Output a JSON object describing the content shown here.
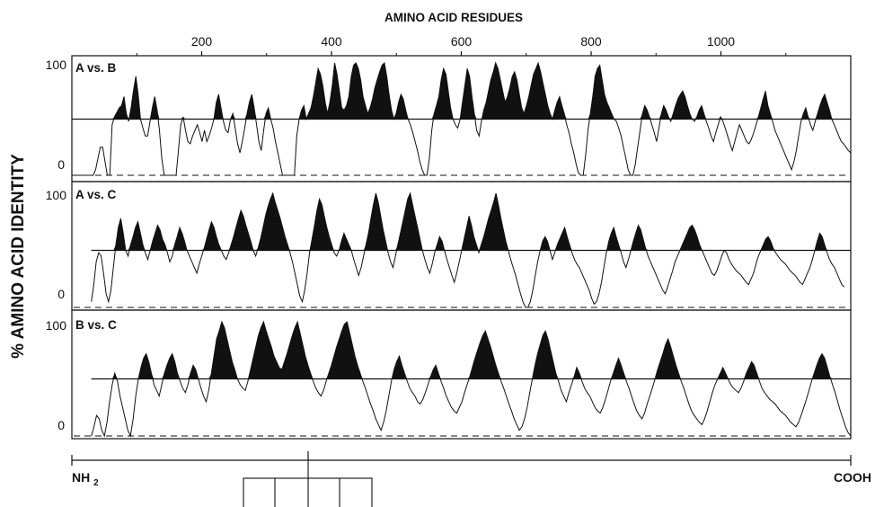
{
  "chart_data": {
    "type": "line",
    "top_axis_title": "AMINO ACID RESIDUES",
    "ylabel": "% AMINO ACID IDENTITY",
    "top_ticks": [
      "200",
      "400",
      "600",
      "800",
      "1000"
    ],
    "top_tick_values": [
      200,
      400,
      600,
      800,
      1000
    ],
    "minor_tick_values": [
      100,
      300,
      500,
      700,
      900,
      1100
    ],
    "xlim": [
      0,
      1200
    ],
    "ylim": [
      0,
      100
    ],
    "threshold": 50,
    "end_labels": {
      "left": "NH2",
      "right": "COOH"
    },
    "panels": [
      {
        "label": "A vs. B",
        "y_ticks": [
          "100",
          "0"
        ],
        "x_start": 0,
        "x_end": 1200,
        "values": [
          0,
          0,
          0,
          0,
          0,
          0,
          0,
          0,
          0,
          0,
          5,
          15,
          25,
          25,
          12,
          0,
          0,
          45,
          52,
          56,
          60,
          62,
          70,
          55,
          48,
          60,
          75,
          88,
          72,
          50,
          42,
          35,
          35,
          48,
          60,
          70,
          58,
          40,
          15,
          0,
          0,
          0,
          0,
          0,
          0,
          22,
          45,
          52,
          40,
          30,
          28,
          35,
          40,
          45,
          38,
          30,
          40,
          30,
          35,
          42,
          50,
          65,
          72,
          60,
          48,
          40,
          38,
          50,
          55,
          42,
          28,
          20,
          30,
          42,
          55,
          65,
          72,
          60,
          45,
          30,
          22,
          40,
          55,
          60,
          50,
          42,
          30,
          20,
          10,
          0,
          0,
          0,
          0,
          0,
          0,
          35,
          50,
          58,
          62,
          50,
          55,
          60,
          70,
          82,
          95,
          90,
          80,
          65,
          55,
          65,
          80,
          100,
          90,
          75,
          60,
          58,
          62,
          70,
          88,
          98,
          100,
          95,
          85,
          70,
          62,
          55,
          60,
          68,
          78,
          85,
          92,
          98,
          100,
          88,
          72,
          58,
          50,
          55,
          65,
          72,
          68,
          58,
          50,
          45,
          38,
          30,
          22,
          12,
          5,
          0,
          0,
          15,
          40,
          55,
          62,
          70,
          85,
          95,
          90,
          75,
          60,
          50,
          45,
          42,
          50,
          65,
          80,
          95,
          88,
          70,
          55,
          40,
          35,
          48,
          58,
          65,
          75,
          85,
          92,
          100,
          95,
          85,
          75,
          65,
          70,
          78,
          88,
          92,
          85,
          72,
          60,
          55,
          62,
          70,
          80,
          90,
          95,
          100,
          92,
          82,
          72,
          62,
          55,
          50,
          58,
          65,
          70,
          62,
          55,
          45,
          38,
          28,
          20,
          10,
          2,
          0,
          0,
          18,
          40,
          55,
          70,
          88,
          95,
          98,
          85,
          72,
          65,
          60,
          55,
          50,
          48,
          42,
          35,
          25,
          15,
          5,
          0,
          0,
          10,
          25,
          40,
          55,
          62,
          58,
          52,
          45,
          38,
          30,
          42,
          55,
          62,
          58,
          52,
          48,
          55,
          62,
          68,
          72,
          75,
          70,
          62,
          55,
          50,
          48,
          52,
          58,
          62,
          55,
          48,
          42,
          35,
          30,
          38,
          45,
          52,
          48,
          42,
          35,
          28,
          22,
          30,
          38,
          45,
          40,
          35,
          30,
          28,
          32,
          38,
          45,
          52,
          60,
          68,
          75,
          62,
          55,
          48,
          40,
          35,
          30,
          25,
          20,
          15,
          10,
          5,
          12,
          22,
          35,
          48,
          55,
          60,
          52,
          45,
          40,
          48,
          55,
          62,
          68,
          72,
          65,
          58,
          50,
          45,
          40,
          35,
          30,
          28,
          25,
          22,
          20
        ]
      },
      {
        "label": "A vs. C",
        "y_ticks": [
          "100",
          "0"
        ],
        "x_start": 30,
        "x_end": 1190,
        "values": [
          5,
          20,
          40,
          48,
          45,
          30,
          12,
          5,
          15,
          35,
          55,
          70,
          78,
          65,
          50,
          45,
          55,
          62,
          70,
          75,
          65,
          55,
          48,
          42,
          50,
          58,
          65,
          72,
          68,
          60,
          55,
          48,
          40,
          45,
          55,
          62,
          70,
          65,
          58,
          50,
          45,
          40,
          35,
          30,
          38,
          45,
          52,
          60,
          68,
          75,
          70,
          62,
          55,
          50,
          45,
          42,
          48,
          55,
          62,
          70,
          78,
          85,
          80,
          72,
          65,
          58,
          50,
          45,
          52,
          60,
          70,
          80,
          88,
          95,
          100,
          92,
          85,
          78,
          70,
          62,
          55,
          48,
          40,
          30,
          20,
          10,
          5,
          15,
          30,
          48,
          60,
          72,
          85,
          95,
          90,
          80,
          70,
          62,
          55,
          48,
          45,
          50,
          58,
          65,
          60,
          55,
          50,
          42,
          35,
          28,
          35,
          45,
          55,
          65,
          78,
          90,
          100,
          92,
          80,
          68,
          58,
          48,
          40,
          35,
          45,
          55,
          65,
          75,
          85,
          95,
          100,
          90,
          80,
          70,
          60,
          50,
          42,
          35,
          30,
          38,
          48,
          55,
          62,
          58,
          50,
          42,
          35,
          28,
          22,
          30,
          40,
          50,
          60,
          70,
          80,
          72,
          62,
          55,
          48,
          55,
          62,
          70,
          78,
          85,
          92,
          100,
          90,
          78,
          68,
          58,
          50,
          42,
          35,
          28,
          20,
          12,
          5,
          0,
          0,
          5,
          15,
          28,
          40,
          50,
          58,
          62,
          58,
          50,
          42,
          48,
          55,
          60,
          65,
          70,
          62,
          55,
          48,
          42,
          38,
          35,
          30,
          25,
          20,
          15,
          8,
          3,
          5,
          12,
          22,
          35,
          48,
          58,
          65,
          70,
          62,
          55,
          48,
          40,
          35,
          42,
          50,
          58,
          65,
          72,
          68,
          60,
          52,
          45,
          40,
          35,
          30,
          25,
          20,
          15,
          12,
          18,
          25,
          32,
          40,
          45,
          50,
          55,
          60,
          65,
          70,
          72,
          68,
          62,
          55,
          50,
          45,
          40,
          35,
          30,
          28,
          32,
          38,
          45,
          50,
          48,
          42,
          38,
          35,
          32,
          30,
          28,
          25,
          22,
          20,
          25,
          30,
          38,
          45,
          50,
          55,
          60,
          62,
          58,
          52,
          48,
          45,
          42,
          40,
          38,
          35,
          32,
          30,
          28,
          25,
          22,
          20,
          25,
          30,
          35,
          42,
          50,
          58,
          65,
          62,
          55,
          48,
          42,
          38,
          35,
          30,
          25,
          20,
          18
        ]
      },
      {
        "label": "B vs. C",
        "y_ticks": [
          "100",
          "0"
        ],
        "x_start": 30,
        "x_end": 1200,
        "values": [
          0,
          8,
          18,
          15,
          5,
          0,
          12,
          30,
          45,
          55,
          48,
          35,
          25,
          15,
          5,
          0,
          15,
          35,
          50,
          60,
          68,
          72,
          65,
          55,
          45,
          40,
          35,
          45,
          55,
          62,
          68,
          72,
          65,
          55,
          48,
          42,
          38,
          45,
          55,
          62,
          58,
          50,
          42,
          35,
          30,
          40,
          55,
          70,
          85,
          92,
          100,
          95,
          85,
          75,
          65,
          58,
          50,
          45,
          42,
          40,
          48,
          58,
          68,
          78,
          88,
          95,
          100,
          92,
          85,
          78,
          70,
          65,
          60,
          58,
          65,
          72,
          80,
          88,
          95,
          100,
          90,
          80,
          70,
          62,
          55,
          48,
          42,
          38,
          35,
          40,
          48,
          55,
          62,
          70,
          78,
          85,
          92,
          98,
          100,
          90,
          80,
          70,
          62,
          55,
          48,
          42,
          35,
          28,
          22,
          15,
          10,
          5,
          12,
          22,
          35,
          48,
          58,
          65,
          70,
          62,
          55,
          48,
          42,
          38,
          35,
          30,
          28,
          32,
          38,
          45,
          52,
          58,
          62,
          55,
          48,
          42,
          35,
          30,
          25,
          22,
          20,
          25,
          30,
          38,
          45,
          52,
          60,
          68,
          75,
          82,
          88,
          92,
          85,
          78,
          70,
          62,
          55,
          48,
          42,
          35,
          28,
          22,
          15,
          10,
          5,
          8,
          15,
          25,
          38,
          50,
          62,
          72,
          80,
          88,
          92,
          85,
          75,
          65,
          55,
          48,
          40,
          35,
          30,
          38,
          45,
          52,
          60,
          55,
          48,
          42,
          38,
          35,
          30,
          25,
          22,
          20,
          25,
          32,
          40,
          48,
          55,
          62,
          68,
          62,
          55,
          48,
          42,
          35,
          28,
          22,
          18,
          15,
          20,
          28,
          35,
          42,
          50,
          58,
          65,
          72,
          80,
          85,
          78,
          70,
          62,
          55,
          48,
          42,
          35,
          28,
          22,
          18,
          15,
          12,
          10,
          15,
          22,
          30,
          38,
          45,
          50,
          55,
          60,
          55,
          50,
          45,
          42,
          40,
          38,
          42,
          48,
          55,
          60,
          65,
          62,
          55,
          48,
          42,
          38,
          35,
          32,
          30,
          28,
          25,
          22,
          20,
          18,
          15,
          12,
          10,
          8,
          12,
          18,
          25,
          32,
          40,
          48,
          55,
          62,
          68,
          72,
          68,
          60,
          52,
          45,
          38,
          30,
          22,
          15,
          8,
          3,
          0
        ]
      }
    ],
    "domain_boxes": {
      "count": 5
    }
  }
}
